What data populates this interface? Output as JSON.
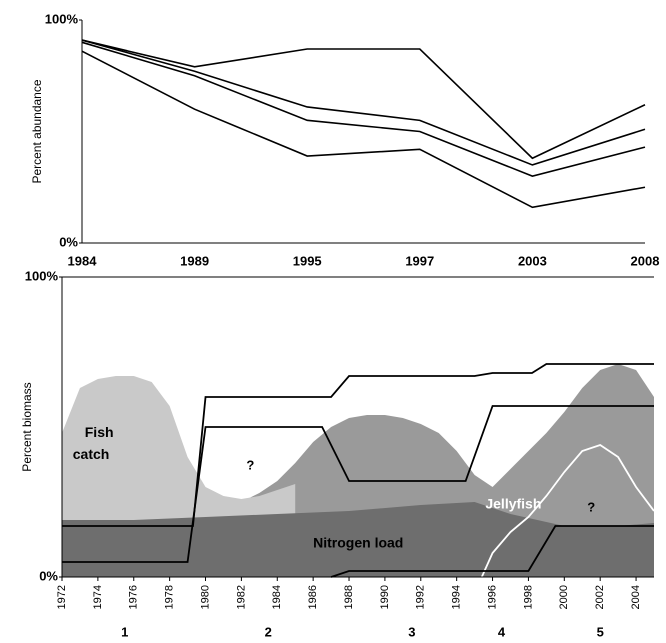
{
  "chart_data": [
    {
      "type": "line",
      "ylabel": "Percent abundance",
      "color": "#000000",
      "categories": [
        "1984",
        "1989",
        "1995",
        "1997",
        "2003",
        "2008"
      ],
      "ylim": [
        0,
        100
      ],
      "yticks": [
        {
          "value": 0,
          "label": "0%"
        },
        {
          "value": 100,
          "label": "100%"
        }
      ],
      "series": [
        {
          "values": [
            91,
            79,
            87,
            87,
            38,
            62
          ]
        },
        {
          "values": [
            91,
            77,
            61,
            55,
            35,
            51
          ]
        },
        {
          "values": [
            90,
            75,
            55,
            50,
            30,
            43
          ]
        },
        {
          "values": [
            86,
            60,
            39,
            42,
            16,
            25
          ]
        }
      ]
    },
    {
      "type": "area",
      "ylabel": "Percent biomass",
      "xlim": [
        1972,
        2005
      ],
      "xticks": [
        1972,
        1974,
        1976,
        1978,
        1980,
        1982,
        1984,
        1986,
        1988,
        1990,
        1992,
        1994,
        1996,
        1998,
        2000,
        2002,
        2004
      ],
      "ylim": [
        0,
        100
      ],
      "yticks": [
        {
          "value": 0,
          "label": "0%"
        },
        {
          "value": 100,
          "label": "100%"
        }
      ],
      "series": [
        {
          "type": "area",
          "color": "#9a9a9a",
          "x": [
            1972,
            1979,
            1980,
            1981,
            1982,
            1983,
            1984,
            1985,
            1986,
            1987,
            1988,
            1989,
            1990,
            1991,
            1992,
            1993,
            1994,
            1995,
            1996,
            1997,
            1998,
            1999,
            2000,
            2001,
            2002,
            2003,
            2004,
            2005
          ],
          "values": [
            18,
            18,
            20,
            22,
            25,
            28,
            32,
            38,
            45,
            50,
            53,
            54,
            54,
            53,
            51,
            48,
            42,
            34,
            30,
            36,
            42,
            48,
            55,
            63,
            69,
            71,
            69,
            60
          ]
        },
        {
          "type": "area",
          "name": "Fish catch",
          "color": "#c9c9c9",
          "x": [
            1972,
            1973,
            1974,
            1975,
            1976,
            1977,
            1978,
            1979,
            1980,
            1981,
            1982,
            1983,
            1984,
            1985
          ],
          "values": [
            48,
            63,
            66,
            67,
            67,
            65,
            57,
            40,
            30,
            27,
            26,
            27,
            29,
            31
          ]
        },
        {
          "type": "area",
          "name": "Nitrogen load",
          "color": "#6e6e6e",
          "x": [
            1972,
            1976,
            1980,
            1984,
            1988,
            1992,
            1995,
            1997,
            2000,
            2003,
            2005
          ],
          "values": [
            19,
            19,
            20,
            21,
            22,
            24,
            25,
            21,
            17,
            17,
            18
          ]
        },
        {
          "type": "line",
          "name": "Jellyfish",
          "color": "#ffffff",
          "x": [
            1995.4,
            1996,
            1997,
            1998,
            1999,
            2000,
            2001,
            2002,
            2003,
            2004,
            2005
          ],
          "values": [
            0,
            8,
            15,
            20,
            27,
            35,
            42,
            44,
            40,
            30,
            22
          ]
        },
        {
          "type": "line",
          "color": "#000000",
          "x": [
            1972,
            1979.3,
            1980,
            1987,
            1988,
            1995,
            1996,
            1998.2,
            1999,
            2005
          ],
          "values": [
            17,
            17,
            60,
            60,
            67,
            67,
            68,
            68,
            71,
            71
          ]
        },
        {
          "type": "line",
          "color": "#000000",
          "x": [
            1972,
            1979,
            1980,
            1986.5,
            1988,
            1994.5,
            1996,
            2005
          ],
          "values": [
            5,
            5,
            50,
            50,
            32,
            32,
            57,
            57
          ]
        },
        {
          "type": "line",
          "color": "#000000",
          "x": [
            1987,
            1988,
            1998,
            1999.5,
            2005
          ],
          "values": [
            0,
            2,
            2,
            17,
            17
          ]
        }
      ],
      "annotations": [
        {
          "text": "?",
          "x": 1982.5,
          "y": 37
        },
        {
          "text": "?",
          "x": 2001.5,
          "y": 23
        }
      ],
      "periods": [
        {
          "text": "1",
          "x": 1975.5
        },
        {
          "text": "2",
          "x": 1983.5
        },
        {
          "text": "3",
          "x": 1991.5
        },
        {
          "text": "4",
          "x": 1996.5
        },
        {
          "text": "5",
          "x": 2002
        }
      ]
    }
  ]
}
